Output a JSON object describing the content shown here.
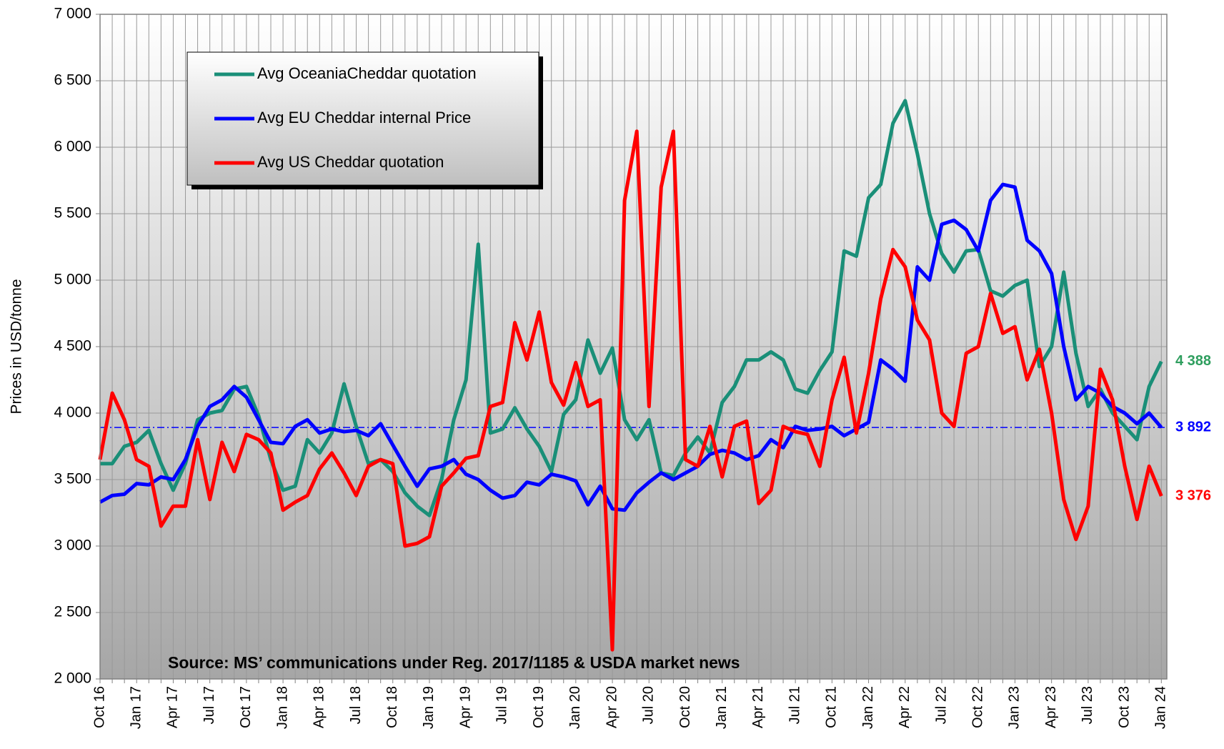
{
  "chart_data": {
    "type": "line",
    "ylabel": "Prices in USD/tonne",
    "annotation": "Source: MS’ communications under Reg. 2017/1185  & USDA market news",
    "categories": [
      "Oct 16",
      null,
      null,
      "Jan 17",
      null,
      null,
      "Apr 17",
      null,
      null,
      "Jul 17",
      null,
      null,
      "Oct 17",
      null,
      null,
      "Jan 18",
      null,
      null,
      "Apr 18",
      null,
      null,
      "Jul 18",
      null,
      null,
      "Oct 18",
      null,
      null,
      "Jan 19",
      null,
      null,
      "Apr 19",
      null,
      null,
      "Jul 19",
      null,
      null,
      "Oct 19",
      null,
      null,
      "Jan 20",
      null,
      null,
      "Apr 20",
      null,
      null,
      "Jul 20",
      null,
      null,
      "Oct 20",
      null,
      null,
      "Jan 21",
      null,
      null,
      "Apr 21",
      null,
      null,
      "Jul 21",
      null,
      null,
      "Oct 21",
      null,
      null,
      "Jan 22",
      null,
      null,
      "Apr 22",
      null,
      null,
      "Jul 22",
      null,
      null,
      "Oct 22",
      null,
      null,
      "Jan 23",
      null,
      null,
      "Apr 23",
      null,
      null,
      "Jul 23",
      null,
      null,
      "Oct 23",
      null,
      null,
      "Jan 24"
    ],
    "series": [
      {
        "name": "Avg OceaniaCheddar quotation",
        "color": "#1a8f78",
        "end_label_color": "#2e9e5e",
        "end_label": "4 388",
        "values": [
          3620,
          3620,
          3750,
          3780,
          3870,
          3620,
          3420,
          3620,
          3950,
          4000,
          4020,
          4180,
          4200,
          3980,
          3650,
          3420,
          3450,
          3800,
          3700,
          3850,
          4220,
          3900,
          3620,
          3650,
          3560,
          3400,
          3300,
          3230,
          3500,
          3950,
          4250,
          5270,
          3850,
          3880,
          4040,
          3880,
          3750,
          3560,
          3990,
          4100,
          4550,
          4300,
          4490,
          3950,
          3800,
          3950,
          3550,
          3530,
          3700,
          3820,
          3700,
          4080,
          4200,
          4400,
          4400,
          4460,
          4400,
          4180,
          4150,
          4320,
          4460,
          5220,
          5180,
          5620,
          5720,
          6180,
          6350,
          5950,
          5500,
          5200,
          5060,
          5220,
          5230,
          4920,
          4880,
          4960,
          5000,
          4350,
          4500,
          5060,
          4450,
          4050,
          4180,
          4000,
          3900,
          3800,
          4200,
          4388
        ]
      },
      {
        "name": "Avg EU Cheddar internal Price",
        "color": "#0000ff",
        "end_label_color": "#0000ff",
        "end_label": "3 892",
        "values": [
          3330,
          3380,
          3390,
          3470,
          3460,
          3520,
          3500,
          3650,
          3900,
          4050,
          4100,
          4200,
          4120,
          3950,
          3780,
          3770,
          3900,
          3950,
          3850,
          3880,
          3860,
          3870,
          3830,
          3920,
          3760,
          3600,
          3450,
          3580,
          3600,
          3650,
          3540,
          3500,
          3420,
          3360,
          3380,
          3480,
          3460,
          3540,
          3520,
          3490,
          3310,
          3450,
          3280,
          3270,
          3400,
          3480,
          3550,
          3500,
          3550,
          3600,
          3690,
          3720,
          3700,
          3650,
          3680,
          3800,
          3740,
          3900,
          3870,
          3880,
          3900,
          3830,
          3880,
          3930,
          4400,
          4330,
          4240,
          5100,
          5000,
          5420,
          5450,
          5380,
          5220,
          5600,
          5720,
          5700,
          5300,
          5220,
          5050,
          4500,
          4100,
          4200,
          4150,
          4050,
          4000,
          3920,
          4000,
          3892
        ]
      },
      {
        "name": "Avg US Cheddar quotation",
        "color": "#ff0000",
        "end_label_color": "#ff0000",
        "end_label": "3 376",
        "values": [
          3650,
          4150,
          3950,
          3650,
          3600,
          3150,
          3300,
          3300,
          3800,
          3350,
          3780,
          3560,
          3840,
          3800,
          3700,
          3270,
          3330,
          3380,
          3580,
          3700,
          3550,
          3380,
          3600,
          3650,
          3620,
          3000,
          3020,
          3070,
          3450,
          3550,
          3660,
          3680,
          4050,
          4080,
          4680,
          4400,
          4760,
          4230,
          4060,
          4380,
          4050,
          4100,
          2220,
          5600,
          6120,
          4050,
          5700,
          6120,
          3650,
          3600,
          3900,
          3520,
          3900,
          3940,
          3320,
          3420,
          3900,
          3860,
          3840,
          3600,
          4100,
          4420,
          3850,
          4300,
          4860,
          5230,
          5100,
          4700,
          4550,
          4000,
          3900,
          4450,
          4500,
          4900,
          4600,
          4650,
          4250,
          4480,
          4000,
          3350,
          3050,
          3300,
          4330,
          4100,
          3600,
          3200,
          3600,
          3376
        ]
      }
    ],
    "hline": {
      "value": 3892,
      "color": "#0000ff"
    },
    "ylim": [
      2000,
      7000
    ],
    "yticks": [
      {
        "value": 2000,
        "label": "2 000"
      },
      {
        "value": 2500,
        "label": "2 500"
      },
      {
        "value": 3000,
        "label": "3 000"
      },
      {
        "value": 3500,
        "label": "3 500"
      },
      {
        "value": 4000,
        "label": "4 000"
      },
      {
        "value": 4500,
        "label": "4 500"
      },
      {
        "value": 5000,
        "label": "5 000"
      },
      {
        "value": 5500,
        "label": "5 500"
      },
      {
        "value": 6000,
        "label": "6 000"
      },
      {
        "value": 6500,
        "label": "6 500"
      },
      {
        "value": 7000,
        "label": "7 000"
      }
    ],
    "grid": true
  }
}
